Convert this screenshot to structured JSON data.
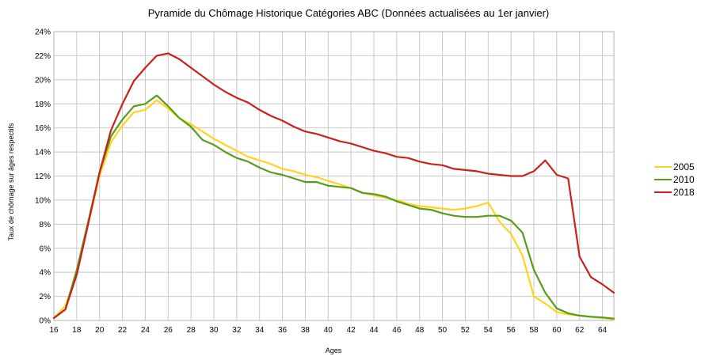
{
  "chart_data": {
    "type": "line",
    "title": "Pyramide du Chômage Historique Catégories ABC (Données actualisées au 1er janvier)",
    "xlabel": "Ages",
    "ylabel": "Taux de chômage sur âges respectifs",
    "xlim": [
      16,
      65
    ],
    "ylim": [
      0,
      24
    ],
    "x_ticks": [
      "16",
      "18",
      "20",
      "22",
      "24",
      "26",
      "28",
      "30",
      "32",
      "34",
      "36",
      "38",
      "40",
      "42",
      "44",
      "46",
      "48",
      "50",
      "52",
      "54",
      "56",
      "58",
      "60",
      "62",
      "64"
    ],
    "y_ticks": [
      "0%",
      "2%",
      "4%",
      "6%",
      "8%",
      "10%",
      "12%",
      "14%",
      "16%",
      "18%",
      "20%",
      "22%",
      "24%"
    ],
    "grid": true,
    "legend_position": "right",
    "x": [
      16,
      17,
      18,
      19,
      20,
      21,
      22,
      23,
      24,
      25,
      26,
      27,
      28,
      29,
      30,
      31,
      32,
      33,
      34,
      35,
      36,
      37,
      38,
      39,
      40,
      41,
      42,
      43,
      44,
      45,
      46,
      47,
      48,
      49,
      50,
      51,
      52,
      53,
      54,
      55,
      56,
      57,
      58,
      59,
      60,
      61,
      62,
      63,
      64,
      65
    ],
    "series": [
      {
        "name": "2005",
        "color": "#ffd320",
        "values": [
          0.2,
          1.2,
          3.8,
          8.0,
          12.0,
          14.8,
          16.2,
          17.3,
          17.5,
          18.3,
          17.6,
          16.8,
          16.3,
          15.7,
          15.1,
          14.6,
          14.1,
          13.6,
          13.3,
          13.0,
          12.6,
          12.4,
          12.1,
          11.9,
          11.6,
          11.3,
          11.0,
          10.6,
          10.4,
          10.2,
          10.0,
          9.7,
          9.5,
          9.4,
          9.3,
          9.2,
          9.3,
          9.5,
          9.8,
          8.2,
          7.2,
          5.4,
          2.0,
          1.4,
          0.7,
          0.5,
          0.4,
          0.3,
          0.2,
          0.1
        ]
      },
      {
        "name": "2010",
        "color": "#579d1c",
        "values": [
          0.2,
          0.9,
          4.2,
          8.2,
          12.3,
          15.3,
          16.7,
          17.8,
          18.0,
          18.7,
          17.8,
          16.8,
          16.1,
          15.0,
          14.6,
          14.0,
          13.5,
          13.2,
          12.7,
          12.3,
          12.1,
          11.8,
          11.5,
          11.5,
          11.2,
          11.1,
          11.0,
          10.6,
          10.5,
          10.3,
          9.9,
          9.6,
          9.3,
          9.2,
          8.9,
          8.7,
          8.6,
          8.6,
          8.7,
          8.7,
          8.3,
          7.3,
          4.2,
          2.3,
          1.0,
          0.6,
          0.4,
          0.3,
          0.25,
          0.15
        ]
      },
      {
        "name": "2018",
        "color": "#c9211e",
        "values": [
          0.2,
          0.9,
          3.8,
          8.0,
          12.3,
          15.8,
          18.0,
          19.9,
          21.0,
          22.0,
          22.2,
          21.7,
          21.0,
          20.3,
          19.6,
          19.0,
          18.5,
          18.1,
          17.5,
          17.0,
          16.6,
          16.1,
          15.7,
          15.5,
          15.2,
          14.9,
          14.7,
          14.4,
          14.1,
          13.9,
          13.6,
          13.5,
          13.2,
          13.0,
          12.9,
          12.6,
          12.5,
          12.4,
          12.2,
          12.1,
          12.0,
          12.0,
          12.4,
          13.3,
          12.1,
          11.8,
          5.3,
          3.6,
          3.0,
          2.3
        ]
      }
    ]
  }
}
